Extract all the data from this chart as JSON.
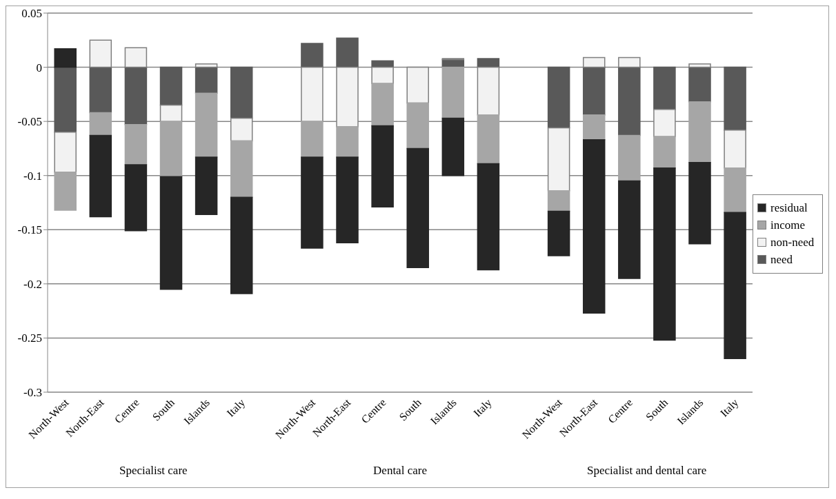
{
  "chart_data": {
    "type": "bar",
    "stacked": true,
    "categories": [
      "North-West",
      "North-East",
      "Centre",
      "South",
      "Islands",
      "Italy",
      null,
      "North-West",
      "North-East",
      "Centre",
      "South",
      "Islands",
      "Italy",
      null,
      "North-West",
      "North-East",
      "Centre",
      "South",
      "Islands",
      "Italy"
    ],
    "series": [
      {
        "name": "need",
        "color": "#595959",
        "values": [
          -0.06,
          -0.042,
          -0.053,
          -0.035,
          -0.024,
          -0.047,
          null,
          0.022,
          0.027,
          0.006,
          0,
          0.007,
          0.008,
          null,
          -0.056,
          -0.044,
          -0.063,
          -0.039,
          -0.032,
          -0.058
        ]
      },
      {
        "name": "non-need",
        "color": "#f2f2f2",
        "values": [
          -0.037,
          0.025,
          0.018,
          -0.015,
          0.003,
          -0.021,
          null,
          -0.05,
          -0.055,
          -0.015,
          -0.033,
          0.001,
          -0.044,
          null,
          -0.058,
          0.009,
          0.009,
          -0.025,
          0.003,
          -0.035
        ]
      },
      {
        "name": "income",
        "color": "#a6a6a6",
        "values": [
          -0.035,
          -0.021,
          -0.037,
          -0.051,
          -0.059,
          -0.052,
          null,
          -0.033,
          -0.028,
          -0.039,
          -0.042,
          -0.047,
          -0.045,
          null,
          -0.019,
          -0.023,
          -0.042,
          -0.029,
          -0.056,
          -0.041
        ]
      },
      {
        "name": "residual",
        "color": "#262626",
        "values": [
          0.017,
          -0.075,
          -0.061,
          -0.104,
          -0.053,
          -0.089,
          null,
          -0.084,
          -0.079,
          -0.075,
          -0.11,
          -0.053,
          -0.098,
          null,
          -0.041,
          -0.16,
          -0.09,
          -0.159,
          -0.075,
          -0.135
        ]
      }
    ],
    "ylim": [
      -0.3,
      0.05
    ],
    "yticks": [
      -0.3,
      -0.25,
      -0.2,
      -0.15,
      -0.1,
      -0.05,
      0,
      0.05
    ],
    "grid": "y",
    "legend": "right",
    "annotations": [
      "Specialist care",
      "Dental care",
      "Specialist and dental care"
    ]
  }
}
